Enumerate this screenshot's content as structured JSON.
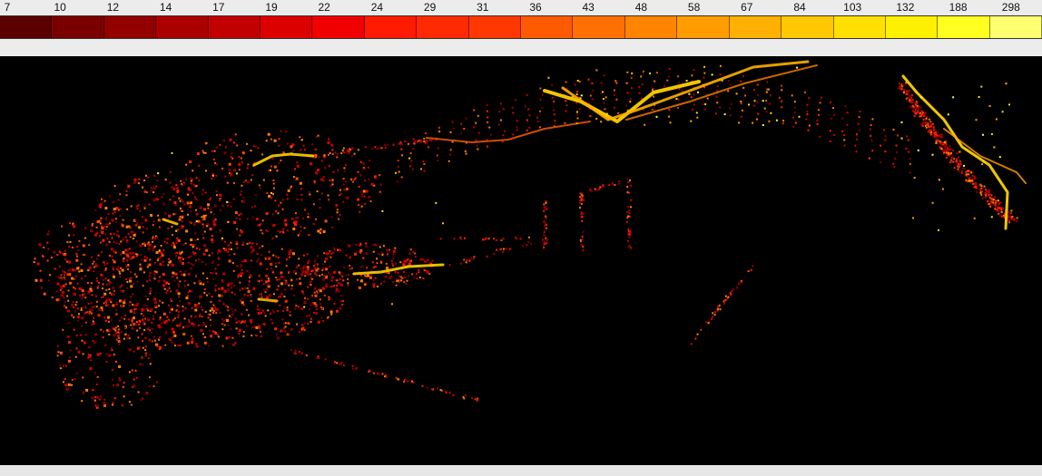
{
  "legend": {
    "labels": [
      "7",
      "10",
      "12",
      "14",
      "17",
      "19",
      "22",
      "24",
      "29",
      "31",
      "36",
      "43",
      "48",
      "58",
      "67",
      "84",
      "103",
      "132",
      "188",
      "298"
    ],
    "colors": [
      "#5a0000",
      "#7a0000",
      "#930000",
      "#ac0000",
      "#c30000",
      "#dd0000",
      "#f00000",
      "#ff1a00",
      "#ff2a00",
      "#ff3800",
      "#ff5a00",
      "#ff7000",
      "#ff8400",
      "#ff9c00",
      "#ffb000",
      "#ffc800",
      "#ffe000",
      "#fff000",
      "#ffff20",
      "#ffff70"
    ]
  },
  "map": {
    "background": "#000000"
  }
}
